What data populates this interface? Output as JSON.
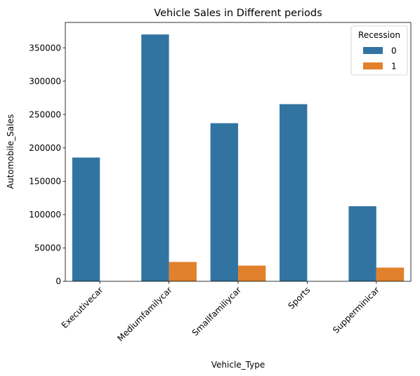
{
  "chart_data": {
    "type": "bar",
    "title": "Vehicle Sales in Different periods",
    "xlabel": "Vehicle_Type",
    "ylabel": "Automobile_Sales",
    "categories": [
      "Executivecar",
      "Mediumfamilycar",
      "Smallfamiliycar",
      "Sports",
      "Supperminicar"
    ],
    "series": [
      {
        "name": "0",
        "color": "#3274a1",
        "values": [
          185500,
          370000,
          237000,
          265500,
          112500
        ]
      },
      {
        "name": "1",
        "color": "#e1812c",
        "values": [
          0,
          29000,
          23500,
          0,
          20500
        ]
      }
    ],
    "ylim": [
      0,
      388000
    ],
    "yticks": [
      0,
      50000,
      100000,
      150000,
      200000,
      250000,
      300000,
      350000
    ],
    "ytick_labels": [
      "0",
      "50000",
      "100000",
      "150000",
      "200000",
      "250000",
      "300000",
      "350000"
    ],
    "legend": {
      "title": "Recession",
      "position": "top-right"
    },
    "grid": false
  }
}
